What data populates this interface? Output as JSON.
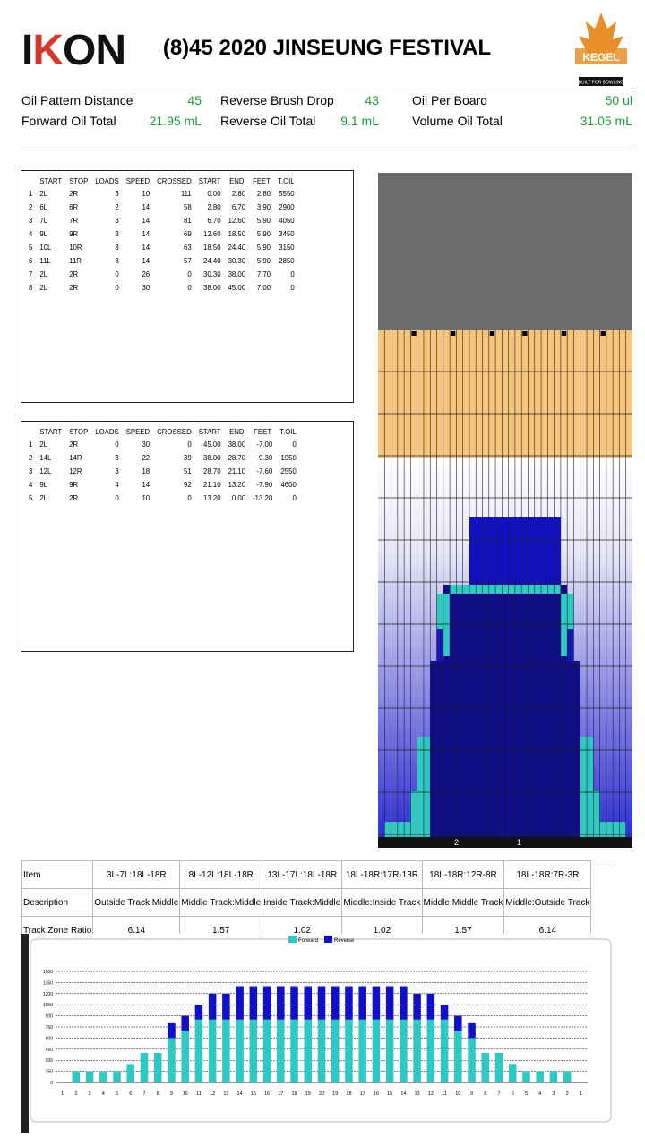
{
  "header": {
    "logo": "IKON",
    "title": "(8)45 2020 JINSEUNG FESTIVAL",
    "brand": "KEGEL",
    "brand_tagline": "BUILT FOR BOWLING"
  },
  "stats": [
    {
      "label": "Oil Pattern Distance",
      "value": "45"
    },
    {
      "label": "Reverse Brush Drop",
      "value": "43"
    },
    {
      "label": "Oil Per Board",
      "value": "50 ul"
    },
    {
      "label": "Forward Oil Total",
      "value": "21.95 mL"
    },
    {
      "label": "Reverse Oil Total",
      "value": "9.1 mL"
    },
    {
      "label": "Volume Oil Total",
      "value": "31.05 mL"
    }
  ],
  "forward_table": {
    "headers": [
      "",
      "START",
      "STOP",
      "LOADS",
      "SPEED",
      "CROSSED",
      "START",
      "END",
      "FEET",
      "T.OIL"
    ],
    "rows": [
      [
        "1",
        "2L",
        "2R",
        "3",
        "10",
        "111",
        "0.00",
        "2.80",
        "2.80",
        "5550"
      ],
      [
        "2",
        "6L",
        "6R",
        "2",
        "14",
        "58",
        "2.80",
        "6.70",
        "3.90",
        "2900"
      ],
      [
        "3",
        "7L",
        "7R",
        "3",
        "14",
        "81",
        "6.70",
        "12.60",
        "5.90",
        "4050"
      ],
      [
        "4",
        "9L",
        "9R",
        "3",
        "14",
        "69",
        "12.60",
        "18.50",
        "5.90",
        "3450"
      ],
      [
        "5",
        "10L",
        "10R",
        "3",
        "14",
        "63",
        "18.50",
        "24.40",
        "5.90",
        "3150"
      ],
      [
        "6",
        "11L",
        "11R",
        "3",
        "14",
        "57",
        "24.40",
        "30.30",
        "5.90",
        "2850"
      ],
      [
        "7",
        "2L",
        "2R",
        "0",
        "26",
        "0",
        "30.30",
        "38.00",
        "7.70",
        "0"
      ],
      [
        "8",
        "2L",
        "2R",
        "0",
        "30",
        "0",
        "38.00",
        "45.00",
        "7.00",
        "0"
      ]
    ]
  },
  "reverse_table": {
    "headers": [
      "",
      "START",
      "STOP",
      "LOADS",
      "SPEED",
      "CROSSED",
      "START",
      "END",
      "FEET",
      "T.OIL"
    ],
    "rows": [
      [
        "1",
        "2L",
        "2R",
        "0",
        "30",
        "0",
        "45.00",
        "38.00",
        "-7.00",
        "0"
      ],
      [
        "2",
        "14L",
        "14R",
        "3",
        "22",
        "39",
        "38.00",
        "28.70",
        "-9.30",
        "1950"
      ],
      [
        "3",
        "12L",
        "12R",
        "3",
        "18",
        "51",
        "28.70",
        "21.10",
        "-7.60",
        "2550"
      ],
      [
        "4",
        "9L",
        "9R",
        "4",
        "14",
        "92",
        "21.10",
        "13.20",
        "-7.90",
        "4600"
      ],
      [
        "5",
        "2L",
        "2R",
        "0",
        "10",
        "0",
        "13.20",
        "0.00",
        "-13.20",
        "0"
      ]
    ]
  },
  "lane_graphic": {
    "bottom_labels": [
      "2",
      "1"
    ],
    "colors": {
      "gray": "#6b6b6b",
      "wood": "#f7c57c",
      "oil_dark": "#0d0d8c",
      "oil_light": "#2ec9c3"
    }
  },
  "track_zone": {
    "item_label": "Item",
    "description_label": "Description",
    "ratio_label": "Track Zone Ratio",
    "columns": [
      {
        "item": "3L-7L:18L-18R",
        "description": "Outside Track:Middle",
        "ratio": "6.14"
      },
      {
        "item": "8L-12L:18L-18R",
        "description": "Middle Track:Middle",
        "ratio": "1.57"
      },
      {
        "item": "13L-17L:18L-18R",
        "description": "Inside Track:Middle",
        "ratio": "1.02"
      },
      {
        "item": "18L-18R:17R-13R",
        "description": "Middle:Inside Track",
        "ratio": "1.02"
      },
      {
        "item": "18L-18R:12R-8R",
        "description": "Middle:Middle Track",
        "ratio": "1.57"
      },
      {
        "item": "18L-18R:7R-3R",
        "description": "Middle:Outside Track",
        "ratio": "6.14"
      }
    ]
  },
  "chart_data": {
    "type": "bar",
    "stacked": true,
    "legend": [
      "Forward",
      "Reverse"
    ],
    "legend_position": "top",
    "ylim": [
      0,
      1500
    ],
    "yticks": [
      0,
      150,
      300,
      450,
      600,
      750,
      900,
      1050,
      1200,
      1350,
      1500
    ],
    "grid": true,
    "categories": [
      "1",
      "2",
      "3",
      "4",
      "5",
      "6",
      "7",
      "8",
      "9",
      "10",
      "11",
      "12",
      "13",
      "14",
      "15",
      "16",
      "17",
      "18",
      "19",
      "20",
      "19",
      "18",
      "17",
      "16",
      "15",
      "14",
      "13",
      "12",
      "11",
      "10",
      "9",
      "8",
      "7",
      "6",
      "5",
      "4",
      "3",
      "2",
      "1"
    ],
    "series": [
      {
        "name": "Forward",
        "color": "#2ec9c3",
        "values": [
          0,
          150,
          150,
          150,
          150,
          250,
          400,
          400,
          600,
          700,
          850,
          850,
          850,
          850,
          850,
          850,
          850,
          850,
          850,
          850,
          850,
          850,
          850,
          850,
          850,
          850,
          850,
          850,
          850,
          700,
          600,
          400,
          400,
          250,
          150,
          150,
          150,
          150,
          0
        ]
      },
      {
        "name": "Reverse",
        "color": "#1010c8",
        "values": [
          0,
          0,
          0,
          0,
          0,
          0,
          0,
          0,
          200,
          200,
          200,
          350,
          350,
          450,
          450,
          450,
          450,
          450,
          450,
          450,
          450,
          450,
          450,
          450,
          450,
          450,
          350,
          350,
          200,
          200,
          200,
          0,
          0,
          0,
          0,
          0,
          0,
          0,
          0
        ]
      }
    ]
  }
}
